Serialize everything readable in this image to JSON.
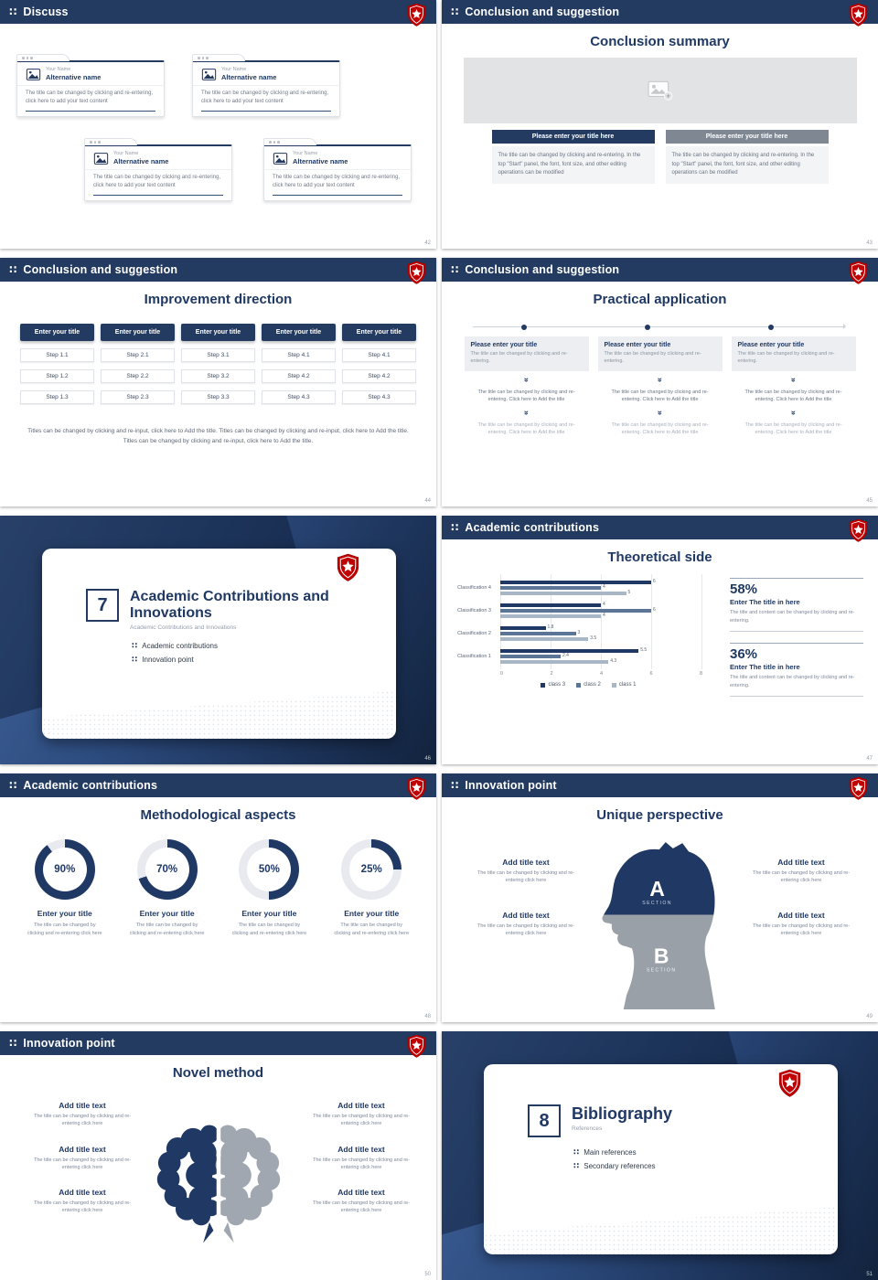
{
  "common": {
    "brand_navy": "#1f3864",
    "header_navy": "#243b61",
    "accent_red": "#c00000",
    "dots_glyph": "∷"
  },
  "chart_data": {
    "type": "bar",
    "orientation": "horizontal",
    "title": "Theoretical side",
    "categories": [
      "Classification 4",
      "Classification 3",
      "Classification 2",
      "Classification 1"
    ],
    "series": [
      {
        "name": "class 3",
        "color": "#1f3864",
        "values": [
          6,
          4,
          1.8,
          5.5
        ]
      },
      {
        "name": "class 2",
        "color": "#5b7596",
        "values": [
          4,
          6,
          3,
          2.4
        ]
      },
      {
        "name": "class 1",
        "color": "#a9b6c6",
        "values": [
          5,
          4,
          3.5,
          4.3
        ]
      }
    ],
    "xlim": [
      0,
      8
    ],
    "x_ticks": [
      0,
      2,
      4,
      6,
      8
    ],
    "legend": [
      "class 3",
      "class 2",
      "class 1"
    ],
    "legend_position": "bottom",
    "grid": true
  },
  "slides": {
    "discuss": {
      "header": "Discuss",
      "page": "42",
      "card": {
        "name": "Your Name",
        "title": "Alternative name",
        "body": "The title can be changed by clicking and re-entering, click here to add your text content"
      }
    },
    "summary": {
      "header": "Conclusion and suggestion",
      "page": "43",
      "title": "Conclusion summary",
      "primary_button": "Please enter your title here",
      "secondary_button": "Please enter your title here",
      "body": "The title can be changed by clicking and re-entering. In the top \"Start\" panel, the font, font size, and other editing operations can be modified"
    },
    "improvement": {
      "header": "Conclusion and suggestion",
      "page": "44",
      "title": "Improvement direction",
      "button": "Enter your title",
      "columns": [
        {
          "steps": [
            "Step 1.1",
            "Step 1.2",
            "Step 1.3"
          ]
        },
        {
          "steps": [
            "Step 2.1",
            "Step 2.2",
            "Step 2.3"
          ]
        },
        {
          "steps": [
            "Step 3.1",
            "Step 3.2",
            "Step 3.3"
          ]
        },
        {
          "steps": [
            "Step 4.1",
            "Step 4.2",
            "Step 4.3"
          ]
        },
        {
          "steps": [
            "Step 4.1",
            "Step 4.2",
            "Step 4.3"
          ]
        }
      ],
      "footer": "Titles can be changed by clicking and re-input, click here to Add the title. Titles can be changed by clicking and re-input, click here to Add the title. Titles can be changed by clicking and re-input, click here to Add the title."
    },
    "practical": {
      "header": "Conclusion and suggestion",
      "page": "45",
      "title": "Practical application",
      "box_title": "Please enter your title",
      "box_body": "The title can be changed by clicking and re-entering.",
      "step_text": "The title can be changed by clicking and re-entering. Click here to Add the title"
    },
    "cover7": {
      "page": "46",
      "number": "7",
      "title": "Academic Contributions and Innovations",
      "subtitle": "Academic Contributions and Innovations",
      "bullets": [
        "Academic contributions",
        "Innovation point"
      ]
    },
    "theoretical": {
      "header": "Academic contributions",
      "page": "47",
      "stats": [
        {
          "percent": "58%",
          "title": "Enter The title in here",
          "body": "The title and content can be changed by clicking and re-entering."
        },
        {
          "percent": "36%",
          "title": "Enter The title in here",
          "body": "The title and content can be changed by clicking and re-entering."
        }
      ]
    },
    "methodological": {
      "header": "Academic contributions",
      "page": "48",
      "title": "Methodological aspects",
      "item_title": "Enter your title",
      "item_body": "The title can be changed by clicking and re-entering click here",
      "items": [
        {
          "percent": 90,
          "label": "90%"
        },
        {
          "percent": 70,
          "label": "70%"
        },
        {
          "percent": 50,
          "label": "50%"
        },
        {
          "percent": 25,
          "label": "25%"
        }
      ]
    },
    "unique": {
      "header": "Innovation point",
      "page": "49",
      "title": "Unique perspective",
      "item_title": "Add title text",
      "item_body": "The title can be changed by clicking and re-entering click here",
      "section_a": "A",
      "section_b": "B",
      "section_label": "SECTION"
    },
    "novel": {
      "header": "Innovation point",
      "page": "50",
      "title": "Novel method",
      "item_title": "Add title text",
      "item_body": "The title can be changed by clicking and re-entering click here"
    },
    "cover8": {
      "page": "51",
      "number": "8",
      "title": "Bibliography",
      "subtitle": "References",
      "bullets": [
        "Main references",
        "Secondary references"
      ]
    }
  }
}
